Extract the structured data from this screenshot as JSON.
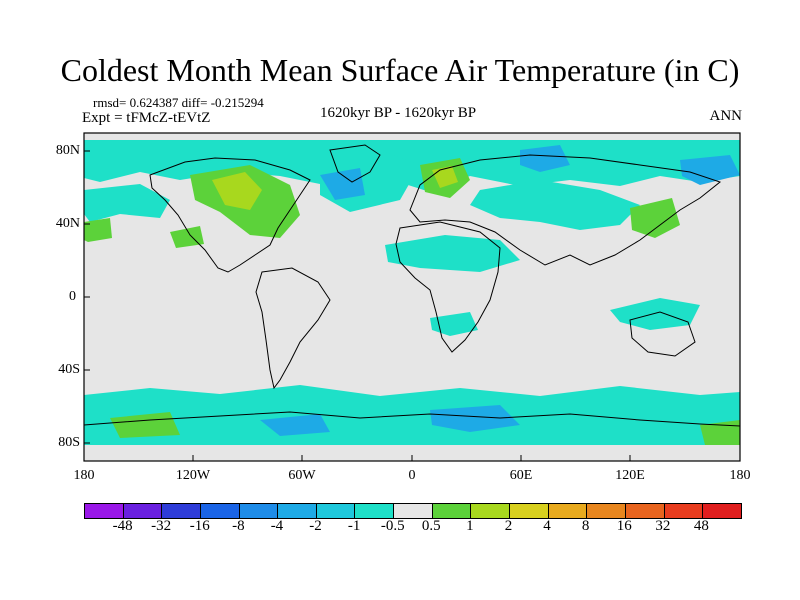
{
  "title": "Coldest Month Mean Surface Air Temperature (in C)",
  "stats": "rmsd= 0.624387 diff= -0.215294",
  "experiment": "Expt = tFMcZ-tEVtZ",
  "period": "1620kyr BP - 1620kyr BP",
  "season": "ANN",
  "lat_labels": [
    "80N",
    "40N",
    "0",
    "40S",
    "80S"
  ],
  "lon_labels": [
    "180",
    "120W",
    "60W",
    "0",
    "60E",
    "120E",
    "180"
  ],
  "colorbar": {
    "labels": [
      "-48",
      "-32",
      "-16",
      "-8",
      "-4",
      "-2",
      "-1",
      "-0.5",
      "0.5",
      "1",
      "2",
      "4",
      "8",
      "16",
      "32",
      "48"
    ],
    "colors": [
      "#9a18e8",
      "#6a20e0",
      "#2e3cd8",
      "#1a64e6",
      "#1e8ce8",
      "#1eaae6",
      "#1ec8dc",
      "#1ee0c8",
      "#e6e6e6",
      "#5cd23a",
      "#a8d81e",
      "#d8d01e",
      "#e8aa1e",
      "#e8861e",
      "#e8641e",
      "#e83c1e",
      "#e01e1e"
    ]
  },
  "colors": {
    "background": "#e6e6e6",
    "negative_small": "#1ee0c8",
    "negative_medium": "#1ec8dc",
    "negative_large": "#1eaae6",
    "positive_small": "#5cd23a",
    "positive_medium": "#a8d81e",
    "coastline": "#000000"
  }
}
